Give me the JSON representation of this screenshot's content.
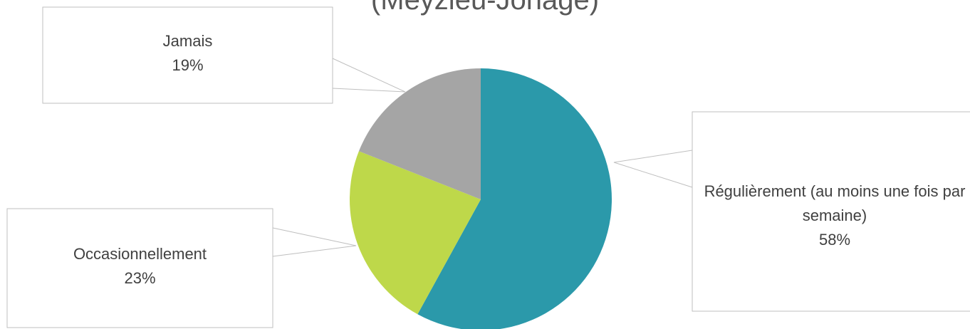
{
  "chart_data": {
    "type": "pie",
    "title": "(Meyzieu-Jonage)",
    "categories": [
      "Régulièrement (au moins une fois par semaine)",
      "Occasionnellement",
      "Jamais"
    ],
    "values": [
      58,
      23,
      19
    ],
    "value_labels": [
      "58%",
      "23%",
      "19%"
    ],
    "colors": [
      "#2b99aa",
      "#bed84a",
      "#a5a5a5"
    ]
  }
}
